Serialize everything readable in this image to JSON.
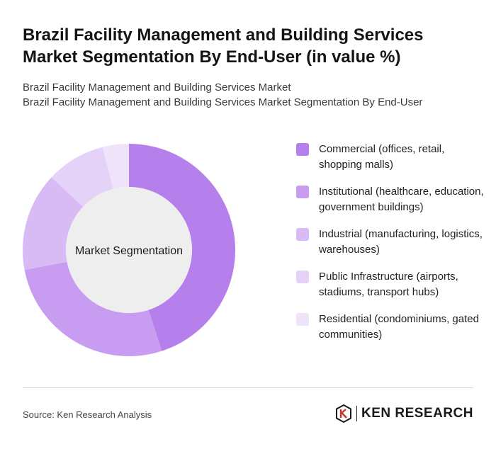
{
  "header": {
    "title": "Brazil Facility Management and Building Services Market Segmentation By End-User (in value %)",
    "subtitle_line1": "Brazil Facility Management and Building Services Market",
    "subtitle_line2": "Brazil Facility Management and Building Services Market Segmentation By End-User"
  },
  "chart_data": {
    "type": "pie",
    "variant": "donut",
    "center_label": "Market Segmentation",
    "legend_position": "right",
    "categories": [
      "Commercial (offices, retail, shopping malls)",
      "Institutional (healthcare, education, government buildings)",
      "Industrial (manufacturing, logistics, warehouses)",
      "Public Infrastructure (airports, stadiums, transport hubs)",
      "Residential (condominiums, gated communities)"
    ],
    "values": [
      45,
      27,
      15,
      9,
      4
    ],
    "colors": [
      "#b57fec",
      "#c89cf0",
      "#d8bbf5",
      "#e5d2f8",
      "#efe3fa"
    ]
  },
  "footer": {
    "source": "Source: Ken Research Analysis",
    "brand": "KEN RESEARCH"
  }
}
